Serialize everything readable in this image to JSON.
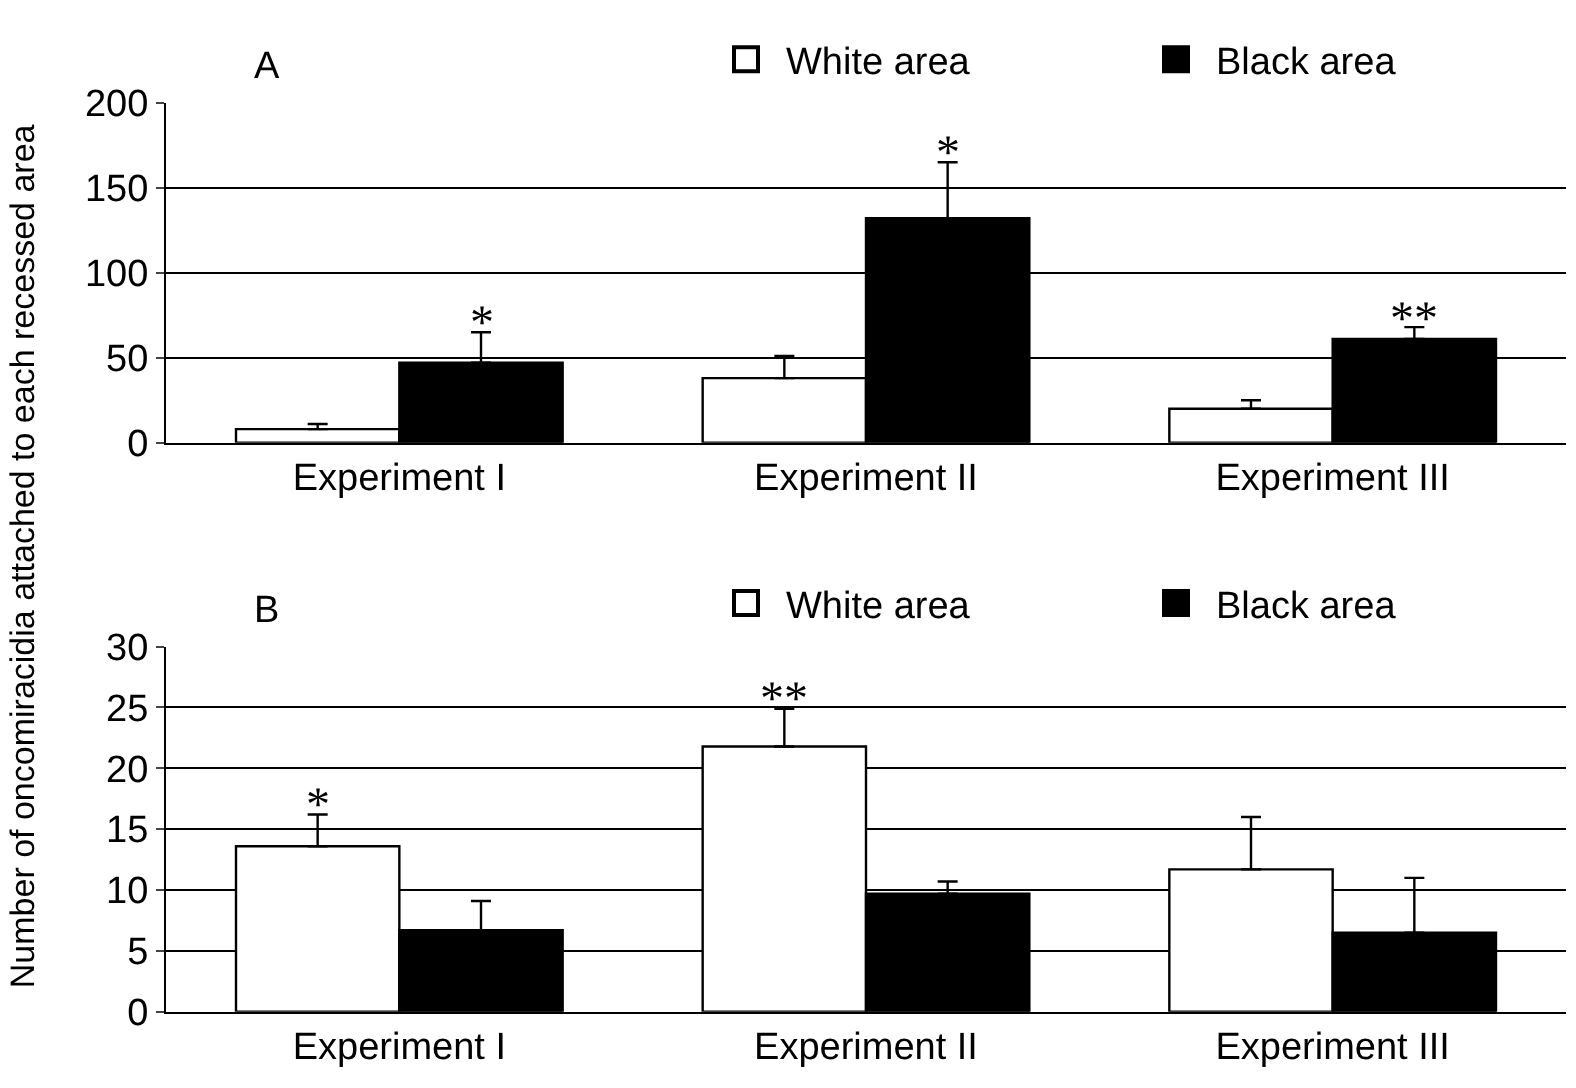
{
  "chart_data": [
    {
      "type": "bar",
      "title": "A",
      "ylabel": "Number of oncomiracidia attached to each recessed area",
      "categories": [
        "Experiment I",
        "Experiment II",
        "Experiment III"
      ],
      "series": [
        {
          "name": "White area",
          "color": "#ffffff",
          "values": [
            8,
            38,
            20
          ],
          "errors": [
            [
              8,
              11
            ],
            [
              38,
              51
            ],
            [
              20,
              25
            ]
          ]
        },
        {
          "name": "Black area",
          "color": "#000000",
          "values": [
            47,
            132,
            61
          ],
          "errors": [
            [
              47,
              65
            ],
            [
              132,
              165
            ],
            [
              61,
              68
            ]
          ],
          "value_labels": [
            "*",
            "*",
            "**"
          ]
        }
      ],
      "ylim": [
        0,
        200
      ],
      "yticks": [
        0,
        50,
        100,
        150,
        200
      ],
      "grid": "y",
      "legend": "top right"
    },
    {
      "type": "bar",
      "title": "B",
      "categories": [
        "Experiment I",
        "Experiment II",
        "Experiment III"
      ],
      "series": [
        {
          "name": "White area",
          "color": "#ffffff",
          "values": [
            13.6,
            21.8,
            11.7
          ],
          "errors": [
            [
              13.6,
              16.2
            ],
            [
              21.8,
              24.9
            ],
            [
              11.7,
              16.0
            ]
          ],
          "value_labels": [
            "*",
            "**",
            null
          ]
        },
        {
          "name": "Black area",
          "color": "#000000",
          "values": [
            6.7,
            9.7,
            6.5
          ],
          "errors": [
            [
              6.7,
              9.1
            ],
            [
              9.7,
              10.7
            ],
            [
              6.5,
              11.0
            ]
          ]
        }
      ],
      "ylim": [
        0,
        30
      ],
      "yticks": [
        0,
        5,
        10,
        15,
        20,
        25,
        30
      ],
      "grid": "y",
      "legend": "top right"
    }
  ]
}
